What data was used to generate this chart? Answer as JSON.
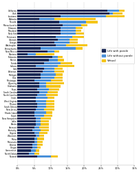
{
  "states": [
    "California",
    "Utah",
    "Louisiana",
    "Alabama",
    "Nevada",
    "Massachusetts",
    "Delaware",
    "Maryland",
    "New York",
    "Tennessee",
    "Colorado",
    "Georgia",
    "Washington",
    "Pennsylvania",
    "New Mexico",
    "Montana",
    "Nebraska",
    "Kansas",
    "Florida",
    "Indiana",
    "Iowa",
    "Arkansas",
    "Michigan",
    "Ohio",
    "Mississippi",
    "Wyoming",
    "Oklahoma",
    "Texas",
    "South Carolina",
    "North Carolina",
    "Illinois",
    "West Virginia",
    "Missouri",
    "South Dakota",
    "New Jersey",
    "Rhode Island",
    "Hawaii",
    "New Hampshire",
    "Idaho",
    "Alaska",
    "Vermont",
    "Kentucky",
    "Virginia",
    "Wisconsin",
    "Maine",
    "Minnesota",
    "Arizona",
    "Oregon",
    "Connecticut",
    "North Dakota",
    "National"
  ],
  "life_with_parole": [
    27.0,
    27.5,
    13.0,
    6.5,
    12.5,
    13.5,
    13.0,
    13.0,
    13.0,
    11.5,
    12.0,
    11.0,
    11.5,
    7.0,
    9.0,
    3.0,
    10.5,
    9.5,
    8.0,
    5.5,
    8.0,
    7.5,
    7.0,
    7.0,
    5.0,
    6.5,
    6.5,
    6.0,
    6.5,
    6.0,
    5.5,
    5.5,
    6.0,
    6.0,
    5.5,
    5.0,
    5.0,
    5.5,
    5.5,
    5.5,
    5.0,
    4.5,
    5.0,
    5.5,
    5.0,
    5.0,
    4.5,
    4.5,
    4.0,
    3.5,
    6.0
  ],
  "life_without_parole": [
    3.5,
    1.0,
    13.5,
    4.5,
    8.0,
    5.5,
    4.5,
    4.5,
    4.5,
    5.0,
    3.5,
    4.5,
    3.0,
    10.5,
    2.0,
    2.5,
    1.5,
    2.5,
    5.0,
    6.5,
    3.0,
    3.5,
    4.5,
    4.0,
    5.0,
    2.0,
    2.0,
    3.5,
    2.5,
    2.5,
    3.5,
    3.0,
    2.5,
    2.5,
    2.5,
    3.5,
    3.0,
    1.5,
    1.5,
    1.5,
    1.5,
    2.5,
    1.5,
    1.0,
    1.0,
    1.0,
    1.5,
    1.5,
    1.5,
    1.5,
    4.0
  ],
  "virtual": [
    1.5,
    3.0,
    5.5,
    12.5,
    3.5,
    2.0,
    2.0,
    1.5,
    2.5,
    3.5,
    2.5,
    2.5,
    6.5,
    2.0,
    1.5,
    5.5,
    1.5,
    2.0,
    3.5,
    5.0,
    2.5,
    3.0,
    2.0,
    2.5,
    3.5,
    5.5,
    4.5,
    3.0,
    3.0,
    3.5,
    2.0,
    2.5,
    2.5,
    2.5,
    3.0,
    2.0,
    2.5,
    3.0,
    2.5,
    2.5,
    3.0,
    2.5,
    2.5,
    1.5,
    2.0,
    1.5,
    1.5,
    1.0,
    1.0,
    1.5,
    2.0
  ],
  "color_with_parole": "#1b2a57",
  "color_without_parole": "#4a90d9",
  "color_virtual": "#f5c518",
  "xlabel_ticks": [
    "0%",
    "5%",
    "10%",
    "15%",
    "20%",
    "25%",
    "30%",
    "35%"
  ],
  "xlabel_vals": [
    0,
    5,
    10,
    15,
    20,
    25,
    30,
    35
  ],
  "legend_labels": [
    "Life with parole",
    "Life without parole",
    "Virtual"
  ],
  "figwidth": 2.02,
  "figheight": 2.49,
  "dpi": 100
}
